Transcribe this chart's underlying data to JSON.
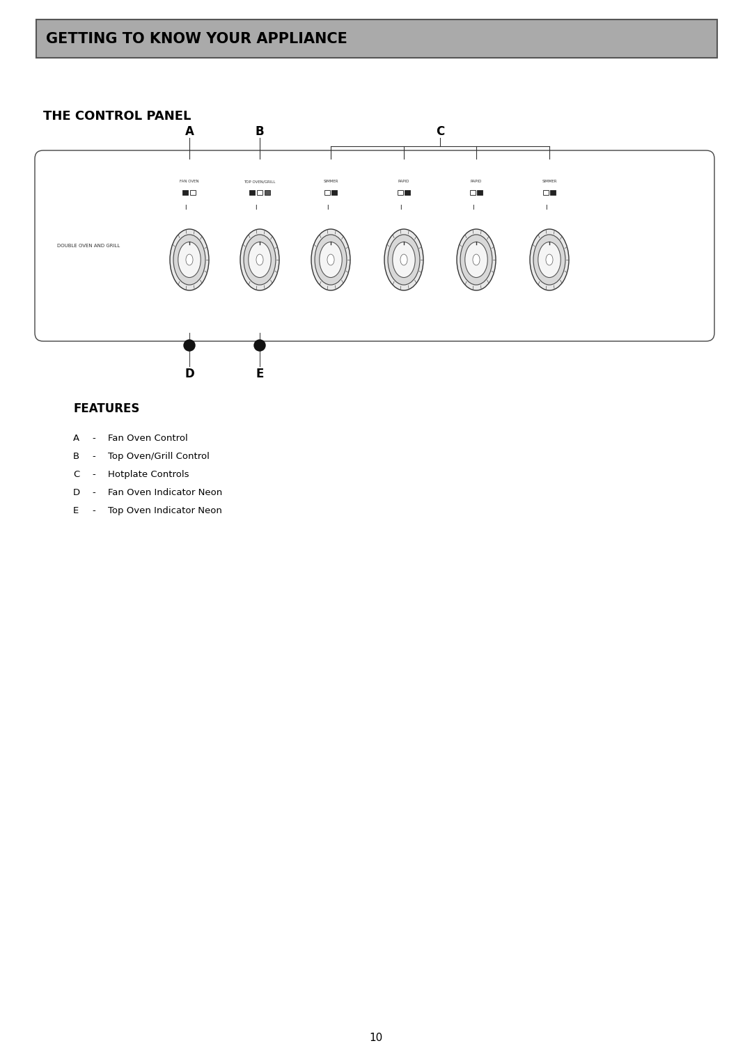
{
  "title_banner": "GETTING TO KNOW YOUR APPLIANCE",
  "title_banner_bg": "#aaaaaa",
  "title_banner_text_color": "#000000",
  "section1_title": "THE CONTROL PANEL",
  "section2_title": "FEATURES",
  "features": [
    [
      "A",
      "Fan Oven Control"
    ],
    [
      "B",
      "Top Oven/Grill Control"
    ],
    [
      "C",
      "Hotplate Controls"
    ],
    [
      "D",
      "Fan Oven Indicator Neon"
    ],
    [
      "E",
      "Top Oven Indicator Neon"
    ]
  ],
  "knob_labels": [
    "FAN OVEN",
    "TOP OVEN/GRILL",
    "SIMMER",
    "RAPID",
    "RAPID",
    "SIMMER"
  ],
  "panel_label": "DOUBLE OVEN AND GRILL",
  "page_number": "10",
  "bg_color": "#ffffff"
}
